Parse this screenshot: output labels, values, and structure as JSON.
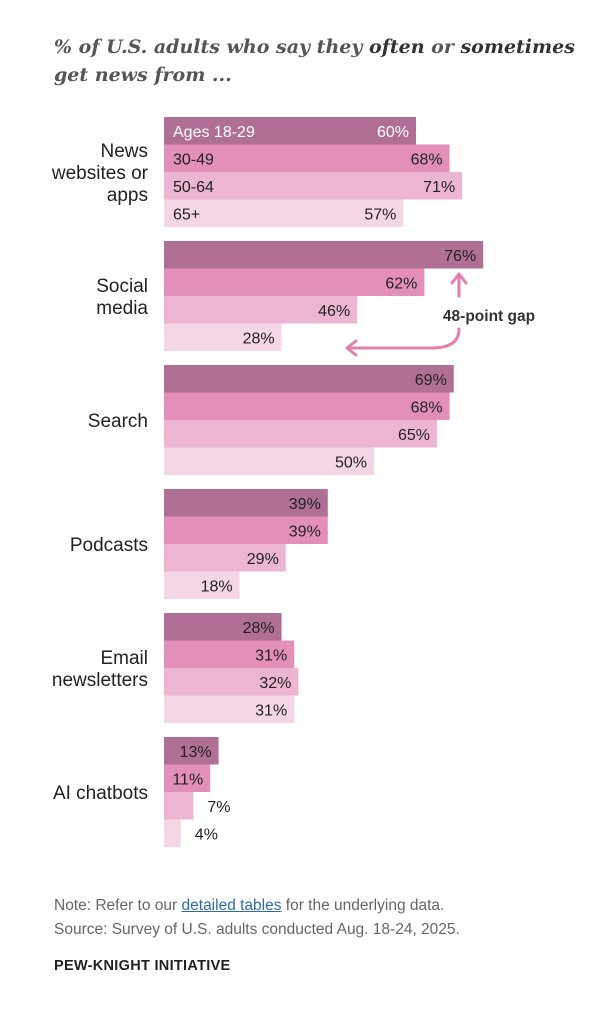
{
  "title": {
    "part1": "% of U.S. adults who say they ",
    "emph1": "often",
    "part2": " or ",
    "emph2": "sometimes",
    "part3": " get news from ..."
  },
  "chart_data": {
    "type": "bar",
    "orientation": "horizontal",
    "unit": "%",
    "categories": [
      [
        "News",
        "websites or",
        "apps"
      ],
      [
        "Social",
        "media"
      ],
      [
        "Search"
      ],
      [
        "Podcasts"
      ],
      [
        "Email",
        "newsletters"
      ],
      [
        "AI chatbots"
      ]
    ],
    "series": [
      {
        "name": "Ages 18-29",
        "color": "#b06f94",
        "values": [
          60,
          76,
          69,
          39,
          28,
          13
        ]
      },
      {
        "name": "30-49",
        "color": "#e28fba",
        "values": [
          68,
          62,
          68,
          39,
          31,
          11
        ]
      },
      {
        "name": "50-64",
        "color": "#ecb6d3",
        "values": [
          71,
          46,
          65,
          29,
          32,
          7
        ]
      },
      {
        "name": "65+",
        "color": "#f5d6e7",
        "values": [
          57,
          28,
          50,
          18,
          31,
          4
        ]
      }
    ],
    "annotation": {
      "text": "48-point gap",
      "category": "Social media",
      "from_series": "Ages 18-29",
      "to_series": "65+",
      "color": "#e07fb0"
    },
    "xlim": [
      0,
      100
    ]
  },
  "footer": {
    "note_prefix": "Note: Refer to our ",
    "note_link": "detailed tables",
    "note_suffix": " for the underlying data.",
    "source": "Source: Survey of U.S. adults conducted Aug. 18-24, 2025.",
    "brand": "PEW-KNIGHT INITIATIVE"
  }
}
